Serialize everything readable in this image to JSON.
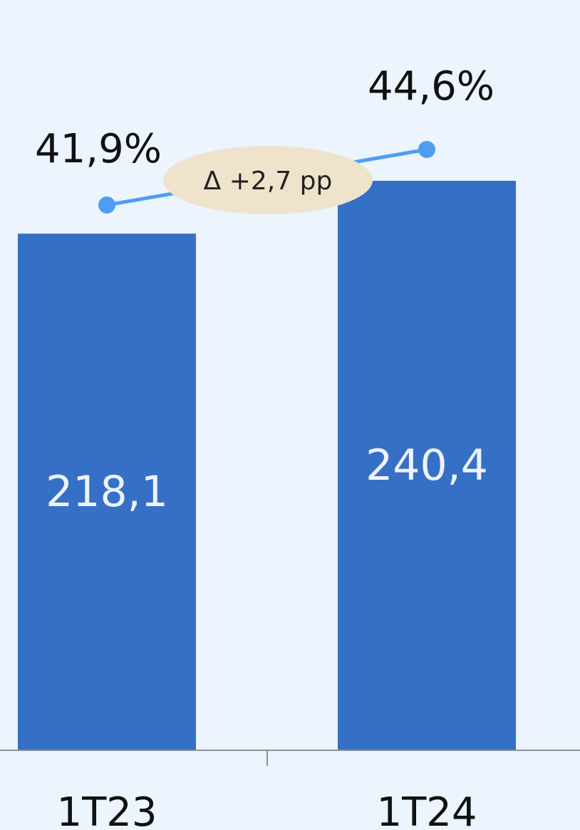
{
  "chart_data": {
    "type": "bar",
    "categories": [
      "1T23",
      "1T24"
    ],
    "series": [
      {
        "values": [
          218.1,
          240.4
        ],
        "labels": [
          "218,1",
          "240,4"
        ]
      },
      {
        "type": "line",
        "values": [
          41.9,
          44.6
        ],
        "labels": [
          "41,9%",
          "44,6%"
        ]
      }
    ],
    "annotation": "Δ +2,7 pp",
    "colors": {
      "background": "#ecf4fe",
      "bar": "#3570c6",
      "line": "#4f9df0",
      "annotation_fill": "#f0e3cc",
      "axis": "#8a9096"
    },
    "grid": false,
    "legend": "none"
  }
}
